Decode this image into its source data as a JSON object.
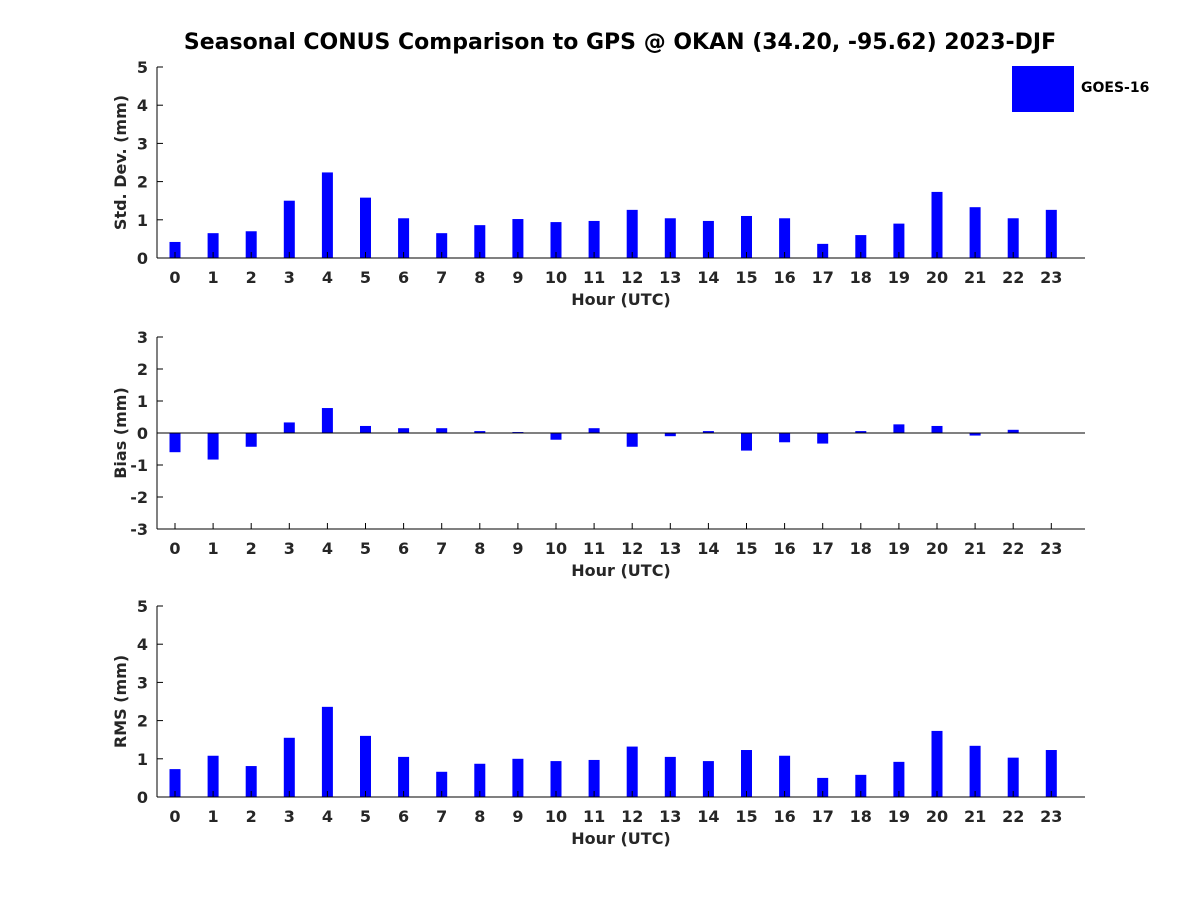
{
  "title": "Seasonal CONUS Comparison to GPS @ OKAN (34.20, -95.62) 2023-DJF",
  "legend": {
    "label": "GOES-16",
    "color": "#0000ff"
  },
  "chart_data": [
    {
      "type": "bar",
      "xlabel": "Hour (UTC)",
      "ylabel": "Std. Dev. (mm)",
      "ylim": [
        0,
        5
      ],
      "yticks": [
        0,
        1,
        2,
        3,
        4,
        5
      ],
      "categories": [
        "0",
        "1",
        "2",
        "3",
        "4",
        "5",
        "6",
        "7",
        "8",
        "9",
        "10",
        "11",
        "12",
        "13",
        "14",
        "15",
        "16",
        "17",
        "18",
        "19",
        "20",
        "21",
        "22",
        "23"
      ],
      "series": [
        {
          "name": "GOES-16",
          "color": "#0000ff",
          "values": [
            0.42,
            0.65,
            0.7,
            1.5,
            2.24,
            1.58,
            1.04,
            0.65,
            0.86,
            1.02,
            0.94,
            0.97,
            1.26,
            1.04,
            0.97,
            1.1,
            1.04,
            0.37,
            0.6,
            0.9,
            1.73,
            1.33,
            1.04,
            1.26
          ]
        }
      ],
      "grid": false
    },
    {
      "type": "bar",
      "xlabel": "Hour (UTC)",
      "ylabel": "Bias (mm)",
      "ylim": [
        -3,
        3
      ],
      "yticks": [
        -3,
        -2,
        -1,
        0,
        1,
        2,
        3
      ],
      "categories": [
        "0",
        "1",
        "2",
        "3",
        "4",
        "5",
        "6",
        "7",
        "8",
        "9",
        "10",
        "11",
        "12",
        "13",
        "14",
        "15",
        "16",
        "17",
        "18",
        "19",
        "20",
        "21",
        "22",
        "23"
      ],
      "series": [
        {
          "name": "GOES-16",
          "color": "#0000ff",
          "values": [
            -0.6,
            -0.83,
            -0.43,
            0.33,
            0.78,
            0.22,
            0.15,
            0.15,
            0.06,
            0.03,
            -0.21,
            0.15,
            -0.43,
            -0.1,
            0.06,
            -0.55,
            -0.29,
            -0.33,
            0.06,
            0.27,
            0.22,
            -0.08,
            0.1,
            0.01
          ]
        }
      ],
      "grid": false
    },
    {
      "type": "bar",
      "xlabel": "Hour (UTC)",
      "ylabel": "RMS (mm)",
      "ylim": [
        0,
        5
      ],
      "yticks": [
        0,
        1,
        2,
        3,
        4,
        5
      ],
      "categories": [
        "0",
        "1",
        "2",
        "3",
        "4",
        "5",
        "6",
        "7",
        "8",
        "9",
        "10",
        "11",
        "12",
        "13",
        "14",
        "15",
        "16",
        "17",
        "18",
        "19",
        "20",
        "21",
        "22",
        "23"
      ],
      "series": [
        {
          "name": "GOES-16",
          "color": "#0000ff",
          "values": [
            0.73,
            1.08,
            0.81,
            1.55,
            2.36,
            1.6,
            1.05,
            0.66,
            0.87,
            1.0,
            0.94,
            0.97,
            1.32,
            1.05,
            0.94,
            1.23,
            1.08,
            0.5,
            0.58,
            0.92,
            1.73,
            1.34,
            1.03,
            1.23
          ]
        }
      ],
      "grid": false
    }
  ]
}
